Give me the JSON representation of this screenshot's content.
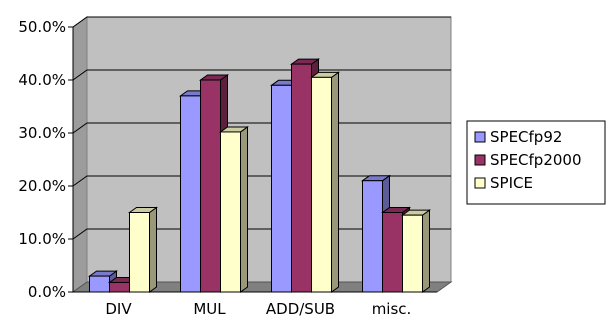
{
  "chart_data": {
    "type": "bar",
    "title": "",
    "xlabel": "",
    "ylabel": "",
    "categories": [
      "DIV",
      "MUL",
      "ADD/SUB",
      "misc."
    ],
    "series": [
      {
        "name": "SPECfp92",
        "values": [
          3.0,
          37.0,
          39.0,
          21.0
        ]
      },
      {
        "name": "SPECfp2000",
        "values": [
          1.8,
          40.0,
          43.0,
          15.0
        ]
      },
      {
        "name": "SPICE",
        "values": [
          15.0,
          30.2,
          40.5,
          14.5
        ]
      }
    ],
    "ylim": [
      0,
      50
    ],
    "yticks": [
      "0.0%",
      "10.0%",
      "20.0%",
      "30.0%",
      "40.0%",
      "50.0%"
    ],
    "grid": true,
    "legend_position": "right",
    "style": "3d-clustered-column",
    "colors": {
      "SPECfp92": "#9999ff",
      "SPECfp2000": "#993366",
      "SPICE": "#ffffcc",
      "plot_background": "#c0c0c0",
      "border": "#000000"
    }
  }
}
